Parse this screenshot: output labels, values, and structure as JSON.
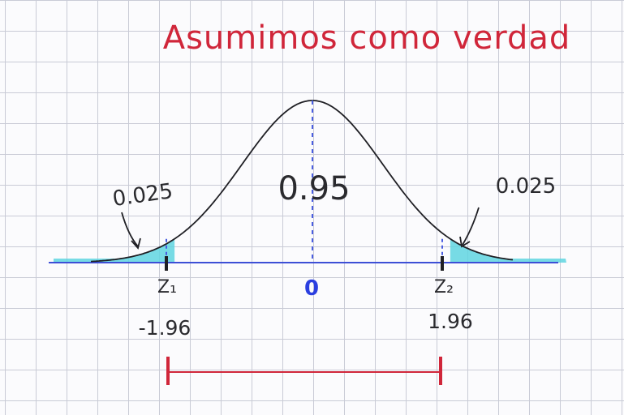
{
  "title": "Asumimos como verdad",
  "center_area": "0.95",
  "left_tail_area": "0.025",
  "right_tail_area": "0.025",
  "mean_label": "0",
  "z1_label": "Z₁",
  "z2_label": "Z₂",
  "z1_value": "-1.96",
  "z2_value": "1.96",
  "colors": {
    "title": "#d0263a",
    "curve": "#1f1f24",
    "axis": "#3d4fd6",
    "shade": "#5fd5e0",
    "dashes": "#4a5ee0",
    "interval": "#d0263a",
    "ink": "#2a2a2e"
  }
}
